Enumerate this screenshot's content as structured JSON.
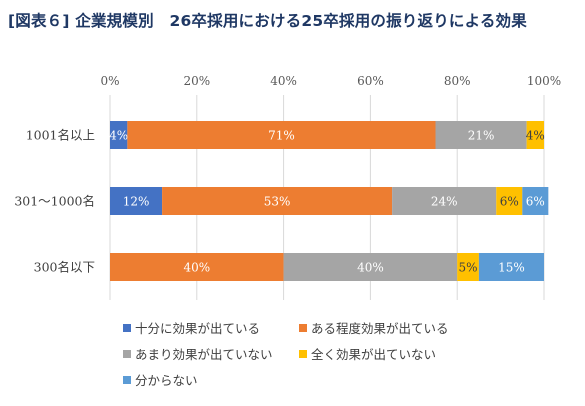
{
  "title": "[図表６] 企業規模別　26卒採用における25卒採用の振り返りによる効果",
  "chart_data": {
    "type": "bar",
    "orientation": "horizontal",
    "stacked": true,
    "percent": true,
    "title": "[図表６] 企業規模別　26卒採用における25卒採用の振り返りによる効果",
    "xlim": [
      0,
      100
    ],
    "x_ticks": [
      "0%",
      "20%",
      "40%",
      "60%",
      "80%",
      "100%"
    ],
    "x_axis_position": "top",
    "grid": "vertical",
    "legend_position": "bottom",
    "categories": [
      "1001名以上",
      "301〜1000名",
      "300名以下"
    ],
    "series": [
      {
        "name": "十分に効果が出ている",
        "color": "#4472c4",
        "values": [
          4,
          12,
          0
        ],
        "labels": [
          "4%",
          "12%",
          ""
        ],
        "label_color": "#ffffff"
      },
      {
        "name": "ある程度効果が出ている",
        "color": "#ed7d31",
        "values": [
          71,
          53,
          40
        ],
        "labels": [
          "71%",
          "53%",
          "40%"
        ],
        "label_color": "#ffffff"
      },
      {
        "name": "あまり効果が出ていない",
        "color": "#a5a5a5",
        "values": [
          21,
          24,
          40
        ],
        "labels": [
          "21%",
          "24%",
          "40%"
        ],
        "label_color": "#ffffff"
      },
      {
        "name": "全く効果が出ていない",
        "color": "#ffc000",
        "values": [
          4,
          6,
          5
        ],
        "labels": [
          "4%",
          "6%",
          "5%"
        ],
        "label_color": "#404040"
      },
      {
        "name": "分からない",
        "color": "#5b9bd5",
        "values": [
          0,
          6,
          15
        ],
        "labels": [
          "",
          "6%",
          "15%"
        ],
        "label_color": "#ffffff"
      }
    ]
  }
}
